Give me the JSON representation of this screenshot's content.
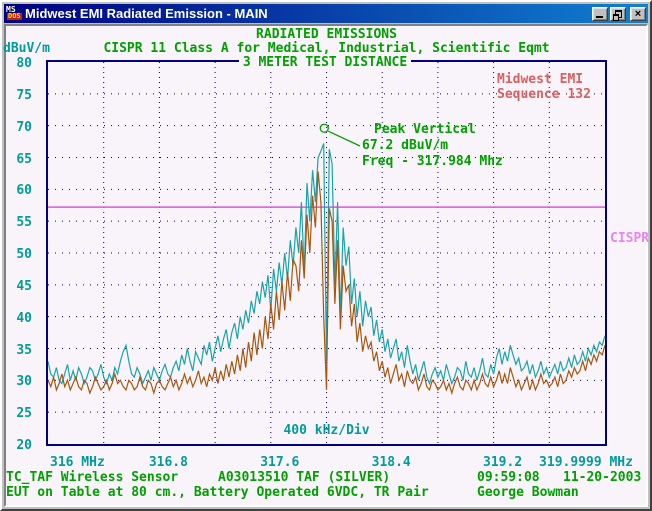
{
  "window": {
    "title": "Midwest EMI Radiated Emission - MAIN",
    "icon_top": "MS",
    "icon_bottom": "DOS",
    "close_glyph": "×"
  },
  "header": {
    "title": "RADIATED EMISSIONS",
    "subtitle": "CISPR 11 Class A for Medical, Industrial, Scientific Eqmt",
    "distance": "3 METER TEST DISTANCE",
    "y_unit": "dBuV/m"
  },
  "lab": {
    "line1": "Midwest EMI",
    "line2": "Sequence 132"
  },
  "peak": {
    "line1": "Peak Vertical",
    "line2": "67.2 dBuV/m",
    "line3": "Freq - 317.984 Mhz"
  },
  "axis": {
    "div_label": "400 kHz/Div",
    "limit_label": "CISPR"
  },
  "footer": {
    "line1_left": "TC_TAF Wireless Sensor",
    "line1_mid": "A03013510 TAF (SILVER)",
    "time": "09:59:08",
    "date": "11-20-2003",
    "line2_left": "EUT on Table at 80 cm., Battery Operated 6VDC, TR Pair",
    "operator": "George Bowman"
  },
  "colors": {
    "green": "#00a000",
    "teal": "#009c9c",
    "red": "#d86060",
    "navy_grid": "#000080",
    "limit_line": "#e352e3",
    "limit_label": "#ee82ee",
    "trace_peak": "#1aa4aa",
    "trace_avg": "#a8560e"
  },
  "chart_data": {
    "type": "line",
    "title": "RADIATED EMISSIONS",
    "xlabel": "400 kHz/Div",
    "ylabel": "dBuV/m",
    "xlim": [
      316,
      320
    ],
    "ylim": [
      20,
      80
    ],
    "x_divisions": 10,
    "y_divisions": 12,
    "grid": true,
    "x_start": 316,
    "x_step": 0.02,
    "y_ticks": [
      "80",
      "75",
      "70",
      "65",
      "60",
      "55",
      "50",
      "45",
      "40",
      "35",
      "30",
      "25",
      "20"
    ],
    "x_ticks": [
      {
        "label": "316 MHz",
        "value": 316,
        "anchor": "left"
      },
      {
        "label": "316.8",
        "value": 316.8,
        "anchor": "center"
      },
      {
        "label": "317.6",
        "value": 317.6,
        "anchor": "center"
      },
      {
        "label": "318.4",
        "value": 318.4,
        "anchor": "center"
      },
      {
        "label": "319.2",
        "value": 319.2,
        "anchor": "center"
      },
      {
        "label": "319.9999 MHz",
        "value": 320,
        "anchor": "end"
      }
    ],
    "limit_line": {
      "label": "CISPR",
      "value": 57.2
    },
    "peak_marker": {
      "freq": 317.984,
      "db": 69.6,
      "reading_db": 67.2
    },
    "series": [
      {
        "name": "peak-vertical-trace",
        "color": "#1aa4aa",
        "values": [
          33,
          31,
          30.5,
          32,
          30,
          29.5,
          31,
          32.5,
          30,
          31.5,
          30,
          32,
          31,
          29.5,
          30.5,
          32,
          31.5,
          30,
          31,
          32.5,
          30.5,
          29.5,
          31,
          30,
          32,
          31,
          33,
          34.5,
          35.5,
          33,
          31,
          30.5,
          32,
          31,
          29.5,
          30.5,
          31.5,
          30,
          32,
          31,
          30,
          31.5,
          32.5,
          31,
          30.5,
          32,
          33,
          31.5,
          34,
          32.5,
          35,
          33,
          31.5,
          34.5,
          33.5,
          32.5,
          35.5,
          34,
          36,
          33,
          35,
          37,
          34.5,
          36.5,
          38,
          35,
          37.5,
          39,
          36.5,
          40,
          38,
          41,
          39,
          42.5,
          40.5,
          44,
          42,
          45.5,
          43,
          46.5,
          41,
          47.5,
          44,
          48.5,
          45,
          50,
          46,
          52,
          48,
          54,
          50,
          58,
          47,
          61,
          55,
          63,
          58,
          65,
          66,
          67.2,
          33,
          66.3,
          64,
          45,
          58,
          40,
          54,
          48,
          51,
          42,
          46,
          40,
          44,
          38.5,
          42.5,
          40,
          41.5,
          37,
          39.5,
          36,
          38,
          34.5,
          36.5,
          33.5,
          35,
          36.5,
          33,
          34.5,
          32,
          35.5,
          33,
          31,
          32.5,
          30,
          31.5,
          33,
          30.5,
          29.5,
          31,
          32,
          30.5,
          31.5,
          30,
          32.5,
          31,
          29.5,
          30.5,
          32,
          31.5,
          30,
          33,
          31,
          30.5,
          32,
          30,
          31.5,
          33.5,
          31,
          30.5,
          32.5,
          31,
          33.5,
          35,
          32.5,
          34.5,
          33,
          35.5,
          34,
          32.5,
          33.5,
          31.5,
          32,
          33,
          31,
          32.5,
          30.5,
          31.5,
          33,
          31,
          32,
          30.5,
          31.5,
          32.5,
          31,
          33,
          31.5,
          32,
          33.5,
          32,
          34,
          32.5,
          33,
          34.5,
          33,
          35,
          34,
          35.5,
          34.5,
          36,
          35.5,
          37
        ]
      },
      {
        "name": "average-trace",
        "color": "#a8560e",
        "values": [
          30,
          29,
          30.5,
          28.5,
          29.5,
          31,
          29,
          30,
          28.5,
          29.5,
          30.5,
          29,
          28.5,
          30,
          29.5,
          28,
          29,
          30.5,
          29.5,
          28.5,
          29,
          30,
          28.5,
          29.5,
          31,
          29.5,
          30,
          29,
          28.5,
          30,
          29.5,
          28.5,
          29,
          30.5,
          29,
          28.5,
          30,
          29.5,
          28,
          29.5,
          30,
          29,
          28.5,
          29.5,
          30.5,
          29,
          30,
          28.5,
          29.5,
          31,
          29.5,
          30.5,
          29,
          30,
          31.5,
          29.5,
          30.5,
          29,
          31,
          30,
          32,
          29.5,
          31.5,
          30,
          32.5,
          30.5,
          33,
          31,
          34,
          31.5,
          35,
          32,
          36,
          33,
          37.5,
          34,
          38,
          35,
          40,
          36.5,
          42,
          38,
          44,
          39.5,
          45.5,
          41,
          47,
          42.5,
          49,
          48,
          44,
          52,
          46,
          56,
          50,
          59,
          54,
          62.8,
          58,
          40,
          28.5,
          57,
          55,
          42,
          52,
          38,
          48,
          44,
          45,
          38.5,
          42,
          36,
          39,
          34.5,
          37,
          35,
          36,
          33,
          34.5,
          31.5,
          33,
          30.5,
          32,
          29.5,
          31,
          32.5,
          30,
          31,
          29,
          31.5,
          30,
          29.5,
          30.5,
          28.5,
          29.5,
          31,
          29,
          28.5,
          30,
          29.5,
          28.5,
          29,
          30,
          28.5,
          29.5,
          28,
          29.5,
          30.5,
          29,
          28.5,
          30,
          29.5,
          28.5,
          30,
          28.5,
          29.5,
          31,
          29.5,
          29,
          30.5,
          29,
          30,
          31.5,
          29.5,
          31,
          29.5,
          32,
          30.5,
          29,
          30,
          28.5,
          29.5,
          30.5,
          28.5,
          30,
          28.5,
          29.5,
          31,
          29.5,
          30,
          29,
          29.5,
          30.5,
          29,
          31,
          29.5,
          30,
          31.5,
          30.5,
          32,
          31,
          31.5,
          33,
          31.5,
          33.5,
          32.5,
          34,
          33,
          34.5,
          34,
          35.5
        ]
      }
    ]
  }
}
